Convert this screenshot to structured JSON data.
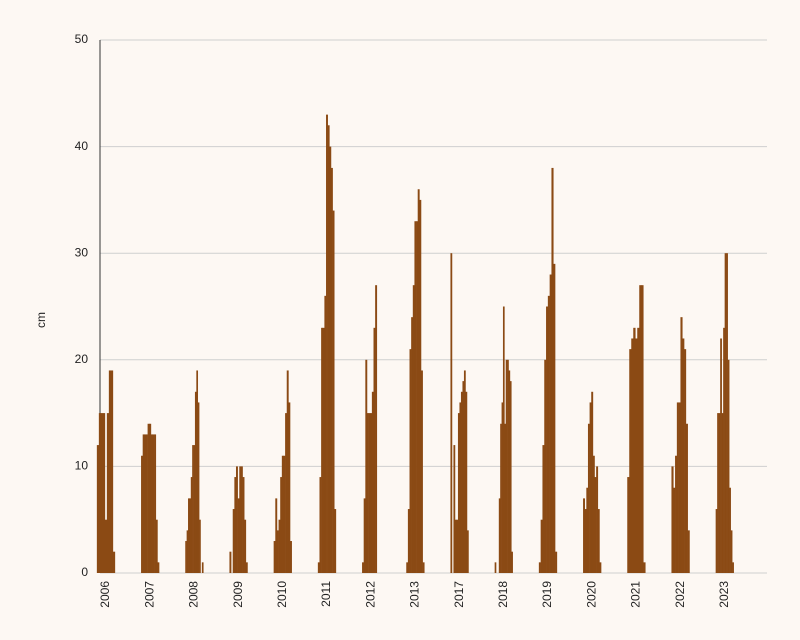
{
  "chart_data": {
    "type": "bar",
    "y_label": "cm",
    "color": "#8b4a14",
    "ylim": [
      0,
      50
    ],
    "yticks": [
      0,
      10,
      20,
      30,
      40,
      50
    ],
    "grid": true,
    "seasons": [
      {
        "label": "2006",
        "values": [
          12,
          15,
          15,
          15,
          5,
          15,
          19,
          19,
          2
        ]
      },
      {
        "label": "2007",
        "values": [
          11,
          13,
          13,
          13,
          14,
          14,
          13,
          13,
          13,
          5,
          1
        ]
      },
      {
        "label": "2008",
        "values": [
          3,
          4,
          7,
          7,
          9,
          12,
          12,
          17,
          19,
          16,
          5,
          0,
          1
        ]
      },
      {
        "label": "2009",
        "values": [
          2,
          0,
          6,
          9,
          10,
          7,
          10,
          10,
          9,
          5,
          1
        ]
      },
      {
        "label": "2010",
        "values": [
          3,
          7,
          4,
          5,
          9,
          11,
          11,
          15,
          19,
          16,
          3
        ]
      },
      {
        "label": "2011",
        "values": [
          1,
          9,
          23,
          23,
          26,
          43,
          42,
          40,
          38,
          34,
          6
        ]
      },
      {
        "label": "2012",
        "values": [
          1,
          7,
          20,
          15,
          15,
          15,
          17,
          23,
          27,
          0,
          0
        ]
      },
      {
        "label": "2013",
        "values": [
          1,
          6,
          21,
          24,
          27,
          33,
          33,
          36,
          35,
          19,
          1
        ]
      },
      {
        "label": "2017",
        "values": [
          30,
          0,
          12,
          5,
          5,
          15,
          16,
          17,
          18,
          19,
          17,
          4
        ]
      },
      {
        "label": "2018",
        "values": [
          1,
          0,
          0,
          7,
          14,
          16,
          25,
          14,
          20,
          20,
          19,
          18,
          2
        ]
      },
      {
        "label": "2019",
        "values": [
          1,
          5,
          12,
          20,
          25,
          26,
          28,
          38,
          29,
          2
        ]
      },
      {
        "label": "2020",
        "values": [
          7,
          6,
          8,
          14,
          16,
          17,
          11,
          9,
          10,
          6,
          1
        ]
      },
      {
        "label": "2021",
        "values": [
          9,
          21,
          22,
          23,
          22,
          23,
          27,
          27,
          1
        ]
      },
      {
        "label": "2022",
        "values": [
          10,
          8,
          11,
          16,
          16,
          24,
          22,
          21,
          14,
          4
        ]
      },
      {
        "label": "2023",
        "values": [
          6,
          15,
          15,
          22,
          15,
          23,
          30,
          30,
          20,
          8,
          4,
          1
        ]
      }
    ]
  }
}
